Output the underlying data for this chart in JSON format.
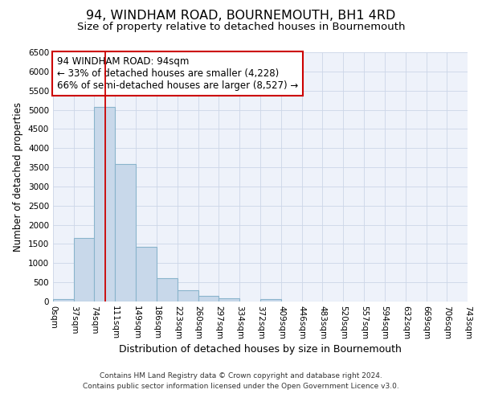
{
  "title": "94, WINDHAM ROAD, BOURNEMOUTH, BH1 4RD",
  "subtitle": "Size of property relative to detached houses in Bournemouth",
  "xlabel": "Distribution of detached houses by size in Bournemouth",
  "ylabel": "Number of detached properties",
  "bin_edges": [
    0,
    37,
    74,
    111,
    149,
    186,
    223,
    260,
    297,
    334,
    372,
    409,
    446,
    483,
    520,
    557,
    594,
    632,
    669,
    706,
    743
  ],
  "bar_heights": [
    60,
    1650,
    5080,
    3590,
    1420,
    610,
    300,
    145,
    75,
    0,
    55,
    0,
    0,
    0,
    0,
    0,
    0,
    0,
    0,
    0
  ],
  "bar_color": "#c8d8ea",
  "bar_edgecolor": "#8ab4cc",
  "bar_linewidth": 0.8,
  "vline_x": 94,
  "vline_color": "#cc0000",
  "vline_linewidth": 1.3,
  "annotation_title": "94 WINDHAM ROAD: 94sqm",
  "annotation_line2": "← 33% of detached houses are smaller (4,228)",
  "annotation_line3": "66% of semi-detached houses are larger (8,527) →",
  "ylim": [
    0,
    6500
  ],
  "yticks": [
    0,
    500,
    1000,
    1500,
    2000,
    2500,
    3000,
    3500,
    4000,
    4500,
    5000,
    5500,
    6000,
    6500
  ],
  "grid_color": "#ccd6e8",
  "background_color": "#eef2fa",
  "footer_line1": "Contains HM Land Registry data © Crown copyright and database right 2024.",
  "footer_line2": "Contains public sector information licensed under the Open Government Licence v3.0.",
  "title_fontsize": 11.5,
  "subtitle_fontsize": 9.5,
  "xlabel_fontsize": 9,
  "ylabel_fontsize": 8.5,
  "tick_fontsize": 7.5,
  "annotation_fontsize": 8.5,
  "footer_fontsize": 6.5
}
